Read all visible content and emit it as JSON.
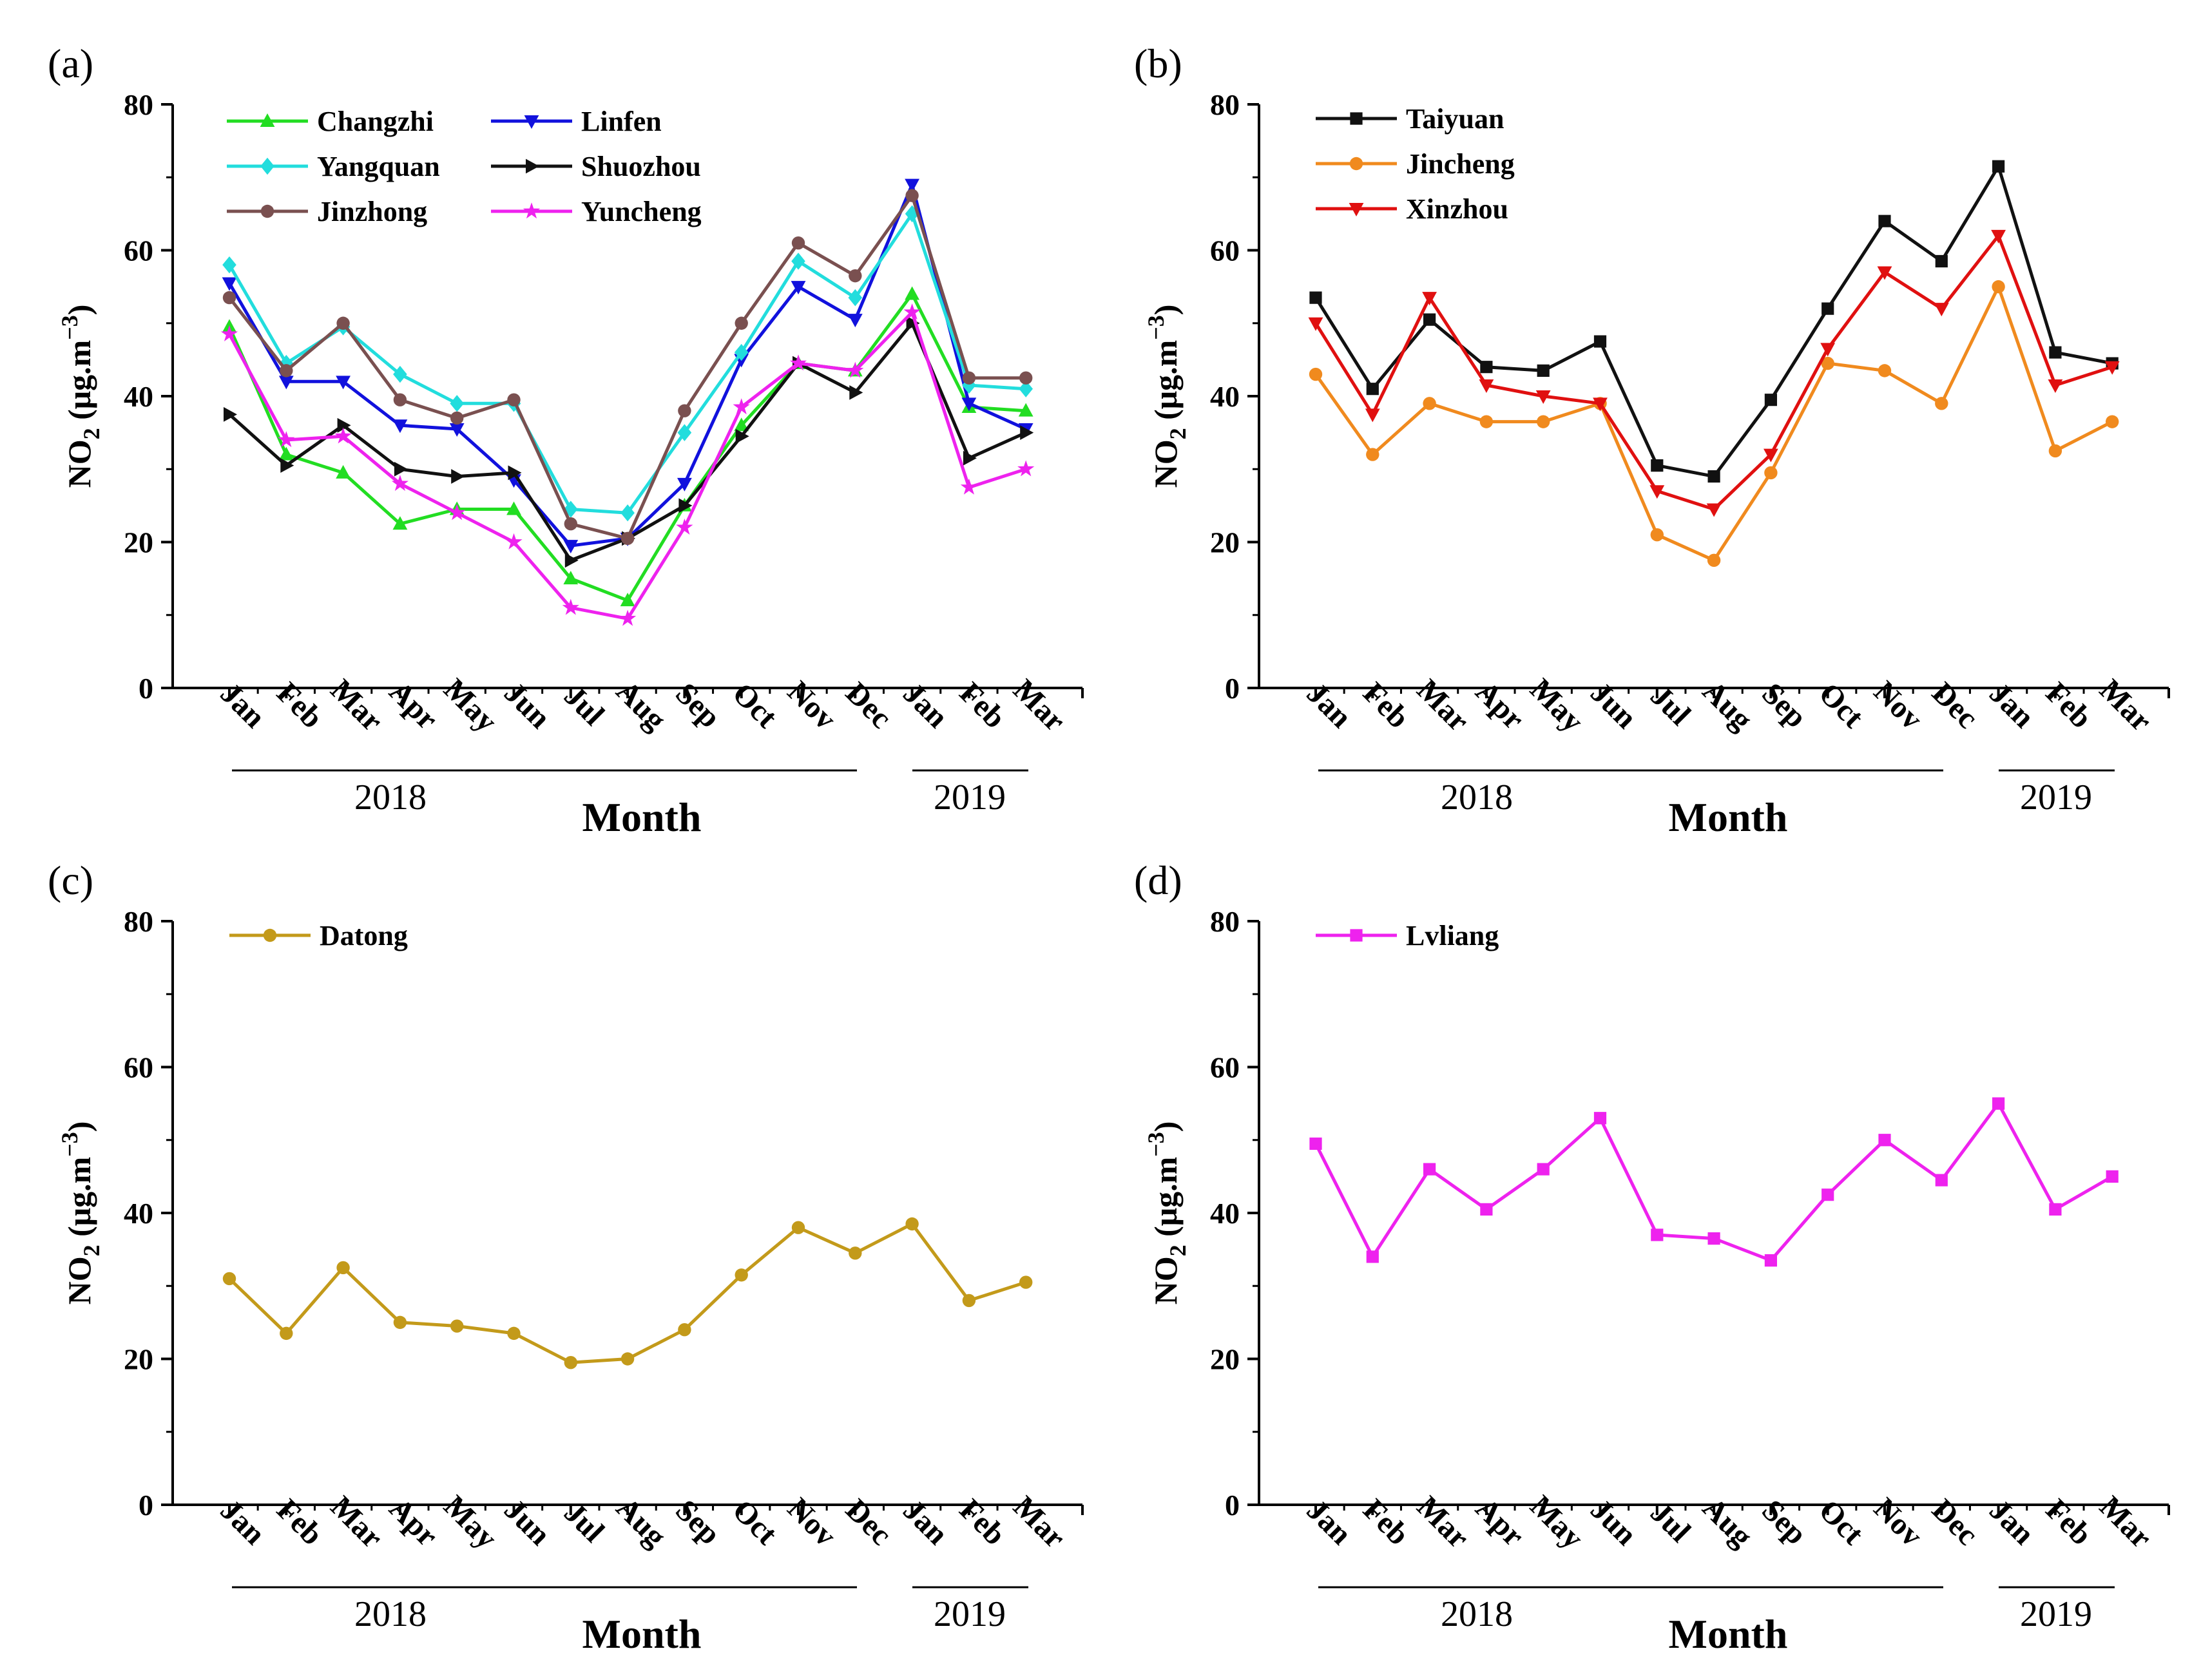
{
  "figure": {
    "month_labels": [
      "Jan",
      "Feb",
      "Mar",
      "Apr",
      "May",
      "Jun",
      "Jul",
      "Aug",
      "Sep",
      "Oct",
      "Nov",
      "Dec",
      "Jan",
      "Feb",
      "Mar"
    ],
    "year_groups": [
      "2018",
      "2019"
    ],
    "xlabel": "Month",
    "ylabel_main": "NO",
    "ylabel_sub": "2",
    "ylabel_unit": " (μg.m",
    "ylabel_sup": "−3",
    "ylabel_close": ")"
  },
  "chart_data": [
    {
      "panel": "(a)",
      "type": "line",
      "ylim": [
        0,
        80
      ],
      "yticks": [
        0,
        20,
        40,
        60,
        80
      ],
      "categories": [
        "Jan 2018",
        "Feb 2018",
        "Mar 2018",
        "Apr 2018",
        "May 2018",
        "Jun 2018",
        "Jul 2018",
        "Aug 2018",
        "Sep 2018",
        "Oct 2018",
        "Nov 2018",
        "Dec 2018",
        "Jan 2019",
        "Feb 2019",
        "Mar 2019"
      ],
      "xlabel": "Month",
      "ylabel": "NO2 (μg.m−3)",
      "series": [
        {
          "name": "Changzhi",
          "color": "#22dd22",
          "marker": "triangle-up",
          "values": [
            49.5,
            32,
            29.5,
            22.5,
            24.5,
            24.5,
            15,
            12,
            25,
            36,
            44.5,
            43.5,
            54,
            38.5,
            38
          ]
        },
        {
          "name": "Linfen",
          "color": "#1111dd",
          "marker": "triangle-down",
          "values": [
            55.5,
            42,
            42,
            36,
            35.5,
            28.5,
            19.5,
            20.5,
            28,
            45,
            55,
            50.5,
            69,
            39,
            35.5
          ]
        },
        {
          "name": "Yangquan",
          "color": "#22dddd",
          "marker": "diamond",
          "values": [
            58,
            44.5,
            49.5,
            43,
            39,
            39,
            24.5,
            24,
            35,
            46,
            58.5,
            53.5,
            65,
            41.5,
            41
          ]
        },
        {
          "name": "Shuozhou",
          "color": "#111111",
          "marker": "triangle-right",
          "values": [
            37.5,
            30.5,
            36,
            30,
            29,
            29.5,
            17.5,
            20.5,
            25,
            34.5,
            44.5,
            40.5,
            50,
            31.5,
            35
          ]
        },
        {
          "name": "Jinzhong",
          "color": "#7a5050",
          "marker": "circle",
          "values": [
            53.5,
            43.5,
            50,
            39.5,
            37,
            39.5,
            22.5,
            20.5,
            38,
            50,
            61,
            56.5,
            67.5,
            42.5,
            42.5
          ]
        },
        {
          "name": "Yuncheng",
          "color": "#ee22ee",
          "marker": "star",
          "values": [
            48.5,
            34,
            34.5,
            28,
            24,
            20,
            11,
            9.5,
            22,
            38.5,
            44.5,
            43.5,
            51.5,
            27.5,
            30
          ]
        }
      ]
    },
    {
      "panel": "(b)",
      "type": "line",
      "ylim": [
        0,
        80
      ],
      "yticks": [
        0,
        20,
        40,
        60,
        80
      ],
      "categories": [
        "Jan 2018",
        "Feb 2018",
        "Mar 2018",
        "Apr 2018",
        "May 2018",
        "Jun 2018",
        "Jul 2018",
        "Aug 2018",
        "Sep 2018",
        "Oct 2018",
        "Nov 2018",
        "Dec 2018",
        "Jan 2019",
        "Feb 2019",
        "Mar 2019"
      ],
      "xlabel": "Month",
      "ylabel": "NO2 (μg.m−3)",
      "series": [
        {
          "name": "Taiyuan",
          "color": "#111111",
          "marker": "square",
          "values": [
            53.5,
            41,
            50.5,
            44,
            43.5,
            47.5,
            30.5,
            29,
            39.5,
            52,
            64,
            58.5,
            71.5,
            46,
            44.5
          ]
        },
        {
          "name": "Jincheng",
          "color": "#f08a1e",
          "marker": "circle",
          "values": [
            43,
            32,
            39,
            36.5,
            36.5,
            39,
            21,
            17.5,
            29.5,
            44.5,
            43.5,
            39,
            55,
            32.5,
            36.5
          ]
        },
        {
          "name": "Xinzhou",
          "color": "#e01010",
          "marker": "triangle-down",
          "values": [
            50,
            37.5,
            53.5,
            41.5,
            40,
            39,
            27,
            24.5,
            32,
            46.5,
            57,
            52,
            62,
            41.5,
            44
          ]
        }
      ]
    },
    {
      "panel": "(c)",
      "type": "line",
      "ylim": [
        0,
        80
      ],
      "yticks": [
        0,
        20,
        40,
        60,
        80
      ],
      "categories": [
        "Jan 2018",
        "Feb 2018",
        "Mar 2018",
        "Apr 2018",
        "May 2018",
        "Jun 2018",
        "Jul 2018",
        "Aug 2018",
        "Sep 2018",
        "Oct 2018",
        "Nov 2018",
        "Dec 2018",
        "Jan 2019",
        "Feb 2019",
        "Mar 2019"
      ],
      "xlabel": "Month",
      "ylabel": "NO2 (μg.m−3)",
      "series": [
        {
          "name": "Datong",
          "color": "#c39a1a",
          "marker": "circle",
          "values": [
            31,
            23.5,
            32.5,
            25,
            24.5,
            23.5,
            19.5,
            20,
            24,
            31.5,
            38,
            34.5,
            38.5,
            28,
            30.5
          ]
        }
      ]
    },
    {
      "panel": "(d)",
      "type": "line",
      "ylim": [
        0,
        80
      ],
      "yticks": [
        0,
        20,
        40,
        60,
        80
      ],
      "categories": [
        "Jan 2018",
        "Feb 2018",
        "Mar 2018",
        "Apr 2018",
        "May 2018",
        "Jun 2018",
        "Jul 2018",
        "Aug 2018",
        "Sep 2018",
        "Oct 2018",
        "Nov 2018",
        "Dec 2018",
        "Jan 2019",
        "Feb 2019",
        "Mar 2019"
      ],
      "xlabel": "Month",
      "ylabel": "NO2 (μg.m−3)",
      "series": [
        {
          "name": "Lvliang",
          "color": "#ee22ee",
          "marker": "square",
          "values": [
            49.5,
            34,
            46,
            40.5,
            46,
            53,
            37,
            36.5,
            33.5,
            42.5,
            50,
            44.5,
            55,
            40.5,
            45
          ]
        }
      ]
    }
  ]
}
